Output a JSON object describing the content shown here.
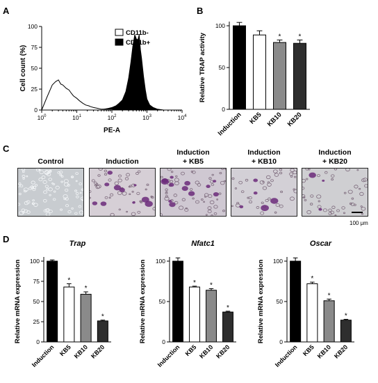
{
  "panels": {
    "a": "A",
    "b": "B",
    "c": "C",
    "d": "D"
  },
  "panel_a": {
    "ylabel": "Cell count (%)",
    "xlabel": "PE-A",
    "yticks": [
      "0",
      "25",
      "50",
      "75",
      "100"
    ],
    "legend": [
      "CD11b-",
      "CD11b+"
    ],
    "legend_colors": [
      "#ffffff",
      "#000000"
    ]
  },
  "panel_c": {
    "titles": [
      [
        "Control",
        ""
      ],
      [
        "Induction",
        ""
      ],
      [
        "Induction",
        "+ KB5"
      ],
      [
        "Induction",
        "+ KB10"
      ],
      [
        "Induction",
        "+ KB20"
      ]
    ],
    "scale_label": "100 μm"
  },
  "chart_data": [
    {
      "type": "area",
      "ylabel": "Cell count (%)",
      "xlabel": "PE-A",
      "xscale": "log",
      "xlim": [
        1,
        10000
      ],
      "ylim": [
        0,
        100
      ],
      "series": [
        {
          "name": "CD11b-",
          "fill": "white",
          "x": [
            1,
            1.4,
            2,
            2.5,
            3,
            3.5,
            4,
            5,
            6,
            7,
            8,
            10,
            12,
            15,
            18,
            22,
            25,
            30,
            40,
            50,
            70,
            100,
            150,
            200
          ],
          "y": [
            0,
            15,
            30,
            34,
            36,
            31,
            30,
            26,
            24,
            20,
            17,
            14,
            11,
            8,
            6,
            5,
            4,
            3,
            2,
            1,
            1,
            1,
            0,
            0
          ]
        },
        {
          "name": "CD11b+",
          "fill": "black",
          "x": [
            40,
            60,
            80,
            100,
            130,
            160,
            200,
            250,
            300,
            350,
            400,
            450,
            500,
            550,
            600,
            650,
            700,
            800,
            900,
            1000,
            1200,
            1500,
            2000,
            3000
          ],
          "y": [
            0,
            1,
            2,
            3,
            5,
            8,
            12,
            22,
            38,
            58,
            78,
            90,
            85,
            84,
            90,
            72,
            62,
            40,
            24,
            13,
            6,
            3,
            1,
            0
          ]
        }
      ]
    },
    {
      "type": "bar",
      "ylabel": "Relative TRAP activity",
      "categories": [
        "Induction",
        "KB5",
        "KB10",
        "KB20"
      ],
      "values": [
        100,
        89,
        80,
        79
      ],
      "errors": [
        4,
        5,
        3,
        4
      ],
      "significance": [
        "",
        "",
        "*",
        "*"
      ],
      "colors": [
        "#000000",
        "#ffffff",
        "#8a8a8a",
        "#2e2e2e"
      ],
      "ylim": [
        0,
        100
      ],
      "yticks": [
        0,
        50,
        100
      ]
    },
    {
      "type": "bar",
      "title": "Trap",
      "ylabel": "Relative mRNA expression",
      "categories": [
        "Induction",
        "KB5",
        "KB10",
        "KB20"
      ],
      "values": [
        100,
        68,
        59,
        26
      ],
      "errors": [
        1.5,
        4,
        3,
        1
      ],
      "significance": [
        "",
        "*",
        "*",
        "*"
      ],
      "colors": [
        "#000000",
        "#ffffff",
        "#8a8a8a",
        "#2e2e2e"
      ],
      "ylim": [
        0,
        100
      ],
      "yticks": [
        0,
        25,
        50,
        75,
        100
      ]
    },
    {
      "type": "bar",
      "title": "Nfatc1",
      "ylabel": "Relative mRNA expression",
      "categories": [
        "Induction",
        "KB5",
        "KB10",
        "KB20"
      ],
      "values": [
        100,
        68,
        64,
        37
      ],
      "errors": [
        4,
        1,
        2,
        1
      ],
      "significance": [
        "",
        "*",
        "*",
        "*"
      ],
      "colors": [
        "#000000",
        "#ffffff",
        "#8a8a8a",
        "#2e2e2e"
      ],
      "ylim": [
        0,
        100
      ],
      "yticks": [
        0,
        50,
        100
      ]
    },
    {
      "type": "bar",
      "title": "Oscar",
      "ylabel": "Relative mRNA expression",
      "categories": [
        "Induction",
        "KB5",
        "KB10",
        "KB20"
      ],
      "values": [
        100,
        72,
        51,
        27
      ],
      "errors": [
        4,
        2,
        2,
        1
      ],
      "significance": [
        "",
        "*",
        "*",
        "*"
      ],
      "colors": [
        "#000000",
        "#ffffff",
        "#8a8a8a",
        "#2e2e2e"
      ],
      "ylim": [
        0,
        100
      ],
      "yticks": [
        0,
        50,
        100
      ]
    }
  ]
}
